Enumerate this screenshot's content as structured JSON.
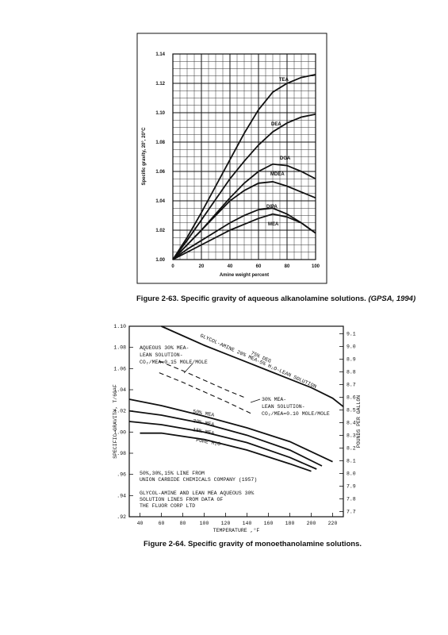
{
  "chart_data": [
    {
      "type": "line",
      "y_label": "Specific gravity, 20°, 20°C",
      "x_label": "Amine weight percent",
      "caption": "Figure 2-63. Specific gravity of aqueous alkanolamine solutions.",
      "caption_source": "(GPSA, 1994)",
      "xlim": [
        0,
        100
      ],
      "ylim": [
        1,
        1.14
      ],
      "xticks": [
        0,
        20,
        40,
        60,
        80,
        100
      ],
      "yticks": [
        {
          "value": 1,
          "label": "1.00"
        },
        {
          "value": 1.02,
          "label": "1.02"
        },
        {
          "value": 1.04,
          "label": "1.04"
        },
        {
          "value": 1.06,
          "label": "1.06"
        },
        {
          "value": 1.08,
          "label": "1.08"
        },
        {
          "value": 1.1,
          "label": "1.10"
        },
        {
          "value": 1.12,
          "label": "1.12"
        },
        {
          "value": 1.14,
          "label": "1.14"
        }
      ],
      "grid": true,
      "x": [
        0,
        10,
        20,
        30,
        40,
        50,
        60,
        70,
        80,
        90,
        100
      ],
      "series": [
        {
          "name": "TEA",
          "color": "#111111",
          "values": [
            1.0,
            1.015,
            1.032,
            1.05,
            1.068,
            1.086,
            1.102,
            1.114,
            1.12,
            1.124,
            1.126
          ]
        },
        {
          "name": "DEA",
          "color": "#111111",
          "values": [
            1.0,
            1.013,
            1.027,
            1.041,
            1.055,
            1.067,
            1.078,
            1.087,
            1.093,
            1.097,
            1.099
          ]
        },
        {
          "name": "DGA",
          "color": "#111111",
          "values": [
            1.0,
            1.01,
            1.02,
            1.031,
            1.042,
            1.052,
            1.06,
            1.065,
            1.064,
            1.06,
            1.055
          ]
        },
        {
          "name": "MDEA",
          "color": "#111111",
          "values": [
            1.0,
            1.01,
            1.02,
            1.03,
            1.04,
            1.047,
            1.052,
            1.053,
            1.05,
            1.046,
            1.042
          ]
        },
        {
          "name": "DIPA",
          "color": "#111111",
          "values": [
            1.0,
            1.007,
            1.013,
            1.019,
            1.025,
            1.03,
            1.034,
            1.035,
            1.031,
            1.025,
            1.018
          ]
        },
        {
          "name": "MEA",
          "color": "#111111",
          "values": [
            1.0,
            1.005,
            1.01,
            1.015,
            1.02,
            1.024,
            1.028,
            1.031,
            1.029,
            1.025,
            1.018
          ]
        }
      ]
    },
    {
      "type": "line",
      "y_label": "SPECIFIC GRAVITY, T/60°F",
      "y2_label": "POUNDS PER GALLON",
      "x_label": "TEMPERATURE ,°F",
      "caption": "Figure 2-64. Specific gravity of monoethanolamine solutions.",
      "xlim": [
        30,
        230
      ],
      "ylim": [
        0.92,
        1.1
      ],
      "y2lim": [
        7.66,
        9.16
      ],
      "xticks": [
        40,
        60,
        80,
        100,
        120,
        140,
        160,
        180,
        200,
        220
      ],
      "yticks": [
        {
          "value": 0.92,
          "label": ".92"
        },
        {
          "value": 0.94,
          "label": ".94"
        },
        {
          "value": 0.96,
          "label": ".96"
        },
        {
          "value": 0.98,
          "label": ".98"
        },
        {
          "value": 1,
          "label": "1.00"
        },
        {
          "value": 1.02,
          "label": "1.02"
        },
        {
          "value": 1.04,
          "label": "1.04"
        },
        {
          "value": 1.06,
          "label": "1.06"
        },
        {
          "value": 1.08,
          "label": "1.08"
        },
        {
          "value": 1.1,
          "label": "1.10"
        }
      ],
      "y2ticks": [
        7.7,
        7.8,
        7.9,
        {
          "value": 8,
          "label": "8.0"
        },
        8.1,
        8.2,
        8.3,
        8.4,
        8.5,
        8.6,
        8.7,
        8.8,
        8.9,
        {
          "value": 9,
          "label": "9.0"
        },
        9.1
      ],
      "grid": false,
      "series": [
        {
          "name": "GLYCOL-AMINE 20% MEA-5% H₂O-LEAN SOLUTION",
          "color": "#111111",
          "x": [
            60,
            80,
            100,
            120,
            140,
            160,
            180,
            200,
            220,
            230
          ],
          "values": [
            1.1,
            1.091,
            1.082,
            1.074,
            1.066,
            1.058,
            1.05,
            1.042,
            1.032,
            1.024
          ]
        },
        {
          "name": [
            "AQUEOUS 30% MEA-",
            "LEAN SOLUTION-",
            "CO₂/MEA=0.15 MOLE/MOLE"
          ],
          "color": "#111111",
          "style": "dashed",
          "x": [
            58,
            80,
            100,
            120,
            137
          ],
          "values": [
            1.067,
            1.058,
            1.049,
            1.04,
            1.033
          ]
        },
        {
          "name": [
            "30% MEA-",
            "LEAN SOLUTION-",
            "CO₂/MEA=0.10 MOLE/MOLE"
          ],
          "color": "#111111",
          "style": "dashed",
          "x": [
            58,
            80,
            100,
            120,
            145
          ],
          "values": [
            1.056,
            1.047,
            1.038,
            1.029,
            1.017
          ]
        },
        {
          "name": "50% MEA",
          "color": "#111111",
          "x": [
            30,
            60,
            100,
            140,
            180,
            220
          ],
          "values": [
            1.031,
            1.025,
            1.015,
            1.004,
            0.991,
            0.972
          ]
        },
        {
          "name": "30% MEA",
          "color": "#111111",
          "x": [
            30,
            60,
            100,
            140,
            180,
            210
          ],
          "values": [
            1.02,
            1.016,
            1.008,
            0.997,
            0.983,
            0.968
          ]
        },
        {
          "name": "15% MEA",
          "color": "#111111",
          "x": [
            30,
            60,
            100,
            140,
            180,
            205
          ],
          "values": [
            1.01,
            1.007,
            1.0,
            0.99,
            0.976,
            0.965
          ]
        },
        {
          "name": "PURE H₂O",
          "color": "#111111",
          "x": [
            40,
            60,
            100,
            140,
            180,
            200
          ],
          "values": [
            0.999,
            0.999,
            0.993,
            0.983,
            0.97,
            0.963
          ]
        }
      ],
      "annotations": [
        "75% DEG",
        [
          "50%,30%,15% LINE FROM",
          "UNION CARBIDE CHEMICALS COMPANY (1957)"
        ],
        [
          "GLYCOL-AMINE AND LEAN MEA AQUEOUS 30%",
          "SOLUTION LINES FROM DATA OF",
          "THE FLUOR CORP LTD"
        ]
      ]
    }
  ]
}
